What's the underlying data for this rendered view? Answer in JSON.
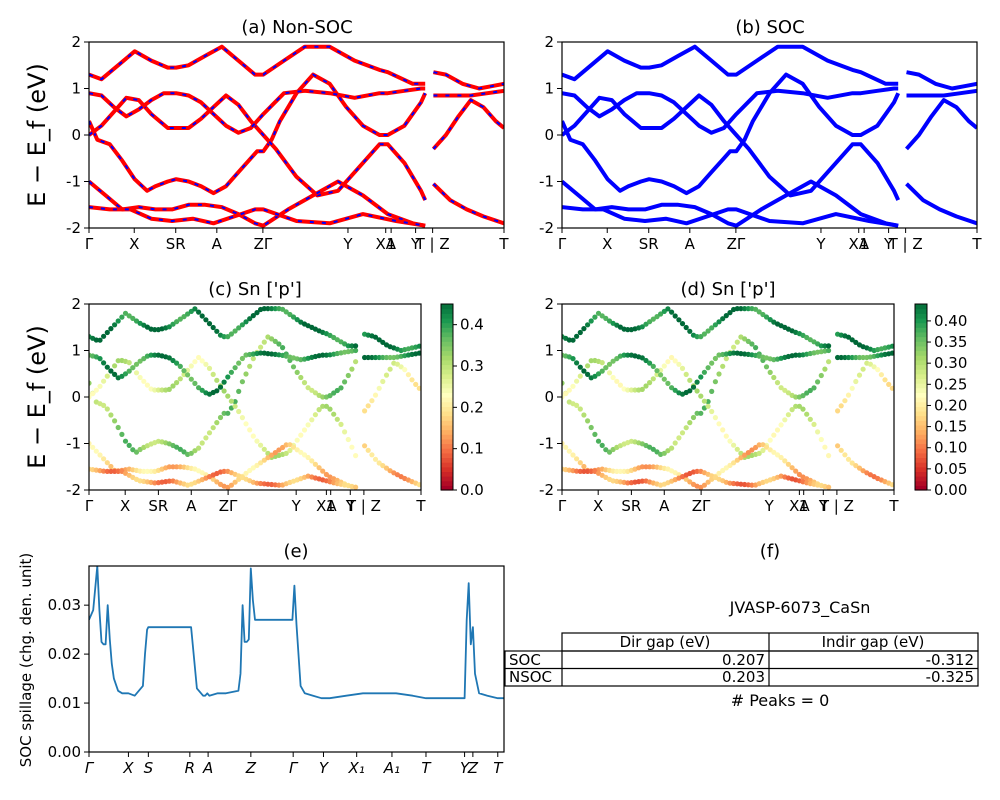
{
  "panels": {
    "a": {
      "title": "(a) Non-SOC"
    },
    "b": {
      "title": "(b) SOC"
    },
    "c": {
      "title": "(c)  Sn ['p']"
    },
    "d": {
      "title": "(d) Sn ['p']"
    },
    "e": {
      "title": "(e)"
    },
    "f": {
      "title": "(f)"
    }
  },
  "band_ylabel": "E − E_f (eV)",
  "spill_ylabel": "SOC spillage (chg. den. unit)",
  "colors": {
    "nonsoc_band": "#ff0000",
    "nonsoc_dash": "#0000ff",
    "soc_band": "#0000ff",
    "spillage_line": "#1f77b4",
    "colormap": [
      "#a50026",
      "#d73027",
      "#f46d43",
      "#fdae61",
      "#fee08b",
      "#ffffbf",
      "#d9ef8b",
      "#a6d96a",
      "#66bd63",
      "#1a9850",
      "#006837"
    ]
  },
  "chart_data": [
    {
      "id": "a",
      "type": "line",
      "title": "(a) Non-SOC",
      "ylabel": "E − E_f (eV)",
      "ylim": [
        -2,
        2
      ],
      "yticks": [
        -2,
        -1,
        0,
        1,
        2
      ],
      "xtick_labels": [
        "Γ",
        "X",
        "SR",
        "A",
        "ZΓ",
        "Y",
        "XA",
        "1",
        "Y",
        "T | Z",
        "T"
      ],
      "xtick_pos": [
        0,
        0.109,
        0.209,
        0.308,
        0.419,
        0.624,
        0.715,
        0.728,
        0.787,
        0.828,
        1.0
      ],
      "series": [
        {
          "x": [
            0,
            0.02,
            0.05,
            0.08,
            0.11,
            0.14,
            0.16,
            0.19,
            0.21,
            0.24,
            0.27,
            0.3,
            0.33,
            0.36,
            0.39,
            0.405,
            0.42,
            0.44,
            0.46,
            0.5,
            0.54,
            0.58,
            0.62,
            0.66,
            0.7,
            0.72,
            0.76,
            0.8,
            0.81
          ],
          "y": [
            0.3,
            -0.1,
            -0.2,
            -0.55,
            -0.95,
            -1.2,
            -1.1,
            -1.0,
            -0.95,
            -1.0,
            -1.1,
            -1.25,
            -1.1,
            -0.8,
            -0.5,
            -0.35,
            -0.35,
            -0.1,
            0.3,
            0.9,
            1.3,
            1.1,
            0.6,
            0.2,
            0.0,
            0.0,
            0.2,
            0.7,
            0.9
          ]
        },
        {
          "x": [
            0,
            0.03,
            0.06,
            0.09,
            0.12,
            0.15,
            0.19,
            0.21,
            0.24,
            0.27,
            0.3,
            0.33,
            0.36,
            0.39,
            0.42,
            0.45,
            0.5,
            0.55,
            0.6,
            0.65,
            0.7,
            0.72,
            0.76,
            0.8,
            0.81
          ],
          "y": [
            0.0,
            0.2,
            0.5,
            0.8,
            0.75,
            0.45,
            0.15,
            0.15,
            0.15,
            0.35,
            0.6,
            0.85,
            0.65,
            0.3,
            0.0,
            -0.3,
            -0.9,
            -1.3,
            -1.2,
            -0.7,
            -0.2,
            -0.2,
            -0.6,
            -1.2,
            -1.4
          ]
        },
        {
          "x": [
            0,
            0.03,
            0.06,
            0.09,
            0.12,
            0.15,
            0.18,
            0.21,
            0.24,
            0.27,
            0.3,
            0.33,
            0.36,
            0.39,
            0.42,
            0.47,
            0.52,
            0.58,
            0.64,
            0.7,
            0.72,
            0.76,
            0.8,
            0.81
          ],
          "y": [
            0.9,
            0.85,
            0.6,
            0.4,
            0.55,
            0.75,
            0.9,
            0.9,
            0.85,
            0.7,
            0.45,
            0.2,
            0.05,
            0.15,
            0.45,
            0.9,
            0.95,
            0.9,
            0.8,
            0.9,
            0.9,
            0.95,
            1.0,
            1.0
          ]
        },
        {
          "x": [
            0,
            0.03,
            0.07,
            0.11,
            0.15,
            0.19,
            0.21,
            0.24,
            0.28,
            0.32,
            0.36,
            0.4,
            0.42,
            0.47,
            0.52,
            0.58,
            0.64,
            0.7,
            0.72,
            0.78,
            0.81
          ],
          "y": [
            1.3,
            1.2,
            1.5,
            1.8,
            1.6,
            1.45,
            1.45,
            1.5,
            1.7,
            1.9,
            1.6,
            1.3,
            1.3,
            1.6,
            1.9,
            1.9,
            1.6,
            1.4,
            1.35,
            1.1,
            1.1
          ]
        },
        {
          "x": [
            0,
            0.04,
            0.08,
            0.12,
            0.16,
            0.2,
            0.24,
            0.28,
            0.32,
            0.36,
            0.4,
            0.42,
            0.48,
            0.54,
            0.6,
            0.66,
            0.72,
            0.78,
            0.81
          ],
          "y": [
            -1.0,
            -1.3,
            -1.6,
            -1.55,
            -1.6,
            -1.6,
            -1.5,
            -1.5,
            -1.55,
            -1.7,
            -1.9,
            -1.95,
            -1.6,
            -1.3,
            -1.0,
            -1.3,
            -1.7,
            -1.9,
            -1.95
          ]
        },
        {
          "x": [
            0,
            0.05,
            0.1,
            0.15,
            0.2,
            0.25,
            0.3,
            0.35,
            0.4,
            0.42,
            0.5,
            0.58,
            0.66,
            0.74,
            0.81
          ],
          "y": [
            -1.55,
            -1.6,
            -1.6,
            -1.8,
            -1.85,
            -1.8,
            -1.9,
            -1.75,
            -1.6,
            -1.6,
            -1.85,
            -1.9,
            -1.7,
            -1.85,
            -1.95
          ]
        },
        {
          "x": [
            0.83,
            0.86,
            0.89,
            0.92,
            0.95,
            0.98,
            1.0
          ],
          "y": [
            -0.3,
            0.0,
            0.4,
            0.75,
            0.6,
            0.3,
            0.15
          ]
        },
        {
          "x": [
            0.83,
            0.86,
            0.9,
            0.94,
            0.97,
            1.0
          ],
          "y": [
            1.35,
            1.3,
            1.1,
            1.0,
            1.05,
            1.1
          ]
        },
        {
          "x": [
            0.83,
            0.87,
            0.91,
            0.95,
            1.0
          ],
          "y": [
            -1.05,
            -1.4,
            -1.6,
            -1.75,
            -1.9
          ]
        },
        {
          "x": [
            0.83,
            0.87,
            0.92,
            0.96,
            1.0
          ],
          "y": [
            0.85,
            0.85,
            0.85,
            0.9,
            0.95
          ]
        }
      ]
    },
    {
      "id": "b",
      "type": "line",
      "title": "(b) SOC",
      "ylim": [
        -2,
        2
      ],
      "yticks": [
        -2,
        -1,
        0,
        1,
        2
      ],
      "xtick_labels": [
        "Γ",
        "X",
        "SR",
        "A",
        "ZΓ",
        "Y",
        "XA",
        "1",
        "Y",
        "T | Z",
        "T"
      ],
      "xtick_pos": [
        0,
        0.109,
        0.209,
        0.308,
        0.419,
        0.624,
        0.715,
        0.728,
        0.787,
        0.828,
        1.0
      ],
      "series_same_as": "a"
    },
    {
      "id": "c",
      "type": "scatter",
      "title": "(c)  Sn ['p']",
      "ylabel": "E − E_f (eV)",
      "ylim": [
        -2,
        2
      ],
      "yticks": [
        -2,
        -1,
        0,
        1,
        2
      ],
      "xtick_labels": [
        "Γ",
        "X",
        "SR",
        "A",
        "ZΓ",
        "Y",
        "XA",
        "1",
        "Y",
        "T | Z",
        "T"
      ],
      "xtick_pos": [
        0,
        0.109,
        0.209,
        0.308,
        0.419,
        0.624,
        0.715,
        0.728,
        0.787,
        0.828,
        1.0
      ],
      "colorbar": {
        "min": 0.0,
        "max": 0.45,
        "ticks": [
          0.0,
          0.1,
          0.2,
          0.3,
          0.4
        ]
      },
      "band_weights": [
        0.12,
        0.18,
        0.05,
        0.03,
        0.28,
        0.32,
        0.22,
        0.02,
        0.3,
        0.05
      ]
    },
    {
      "id": "d",
      "type": "scatter",
      "title": "(d) Sn ['p']",
      "ylim": [
        -2,
        2
      ],
      "yticks": [
        -2,
        -1,
        0,
        1,
        2
      ],
      "xtick_labels": [
        "Γ",
        "X",
        "SR",
        "A",
        "ZΓ",
        "Y",
        "XA",
        "1",
        "Y",
        "T | Z",
        "T"
      ],
      "xtick_pos": [
        0,
        0.109,
        0.209,
        0.308,
        0.419,
        0.624,
        0.715,
        0.728,
        0.787,
        0.828,
        1.0
      ],
      "colorbar": {
        "min": 0.0,
        "max": 0.44,
        "ticks": [
          0.0,
          0.05,
          0.1,
          0.15,
          0.2,
          0.25,
          0.3,
          0.35,
          0.4
        ]
      },
      "band_weights": [
        0.12,
        0.18,
        0.05,
        0.03,
        0.28,
        0.32,
        0.22,
        0.02,
        0.3,
        0.05
      ]
    },
    {
      "id": "e",
      "type": "line",
      "title": "(e)",
      "ylabel": "SOC spillage (chg. den. unit)",
      "ylim": [
        0.0,
        0.038
      ],
      "yticks": [
        0.0,
        0.01,
        0.02,
        0.03
      ],
      "ytick_labels": [
        "0.00",
        "0.01",
        "0.02",
        "0.03"
      ],
      "xtick_labels": [
        "Γ",
        "X",
        "S",
        "R",
        "A",
        "Z",
        "Γ",
        "Y",
        "X₁",
        "A₁",
        "T",
        "Y",
        "Z",
        "T"
      ],
      "xtick_pos": [
        0,
        0.095,
        0.143,
        0.243,
        0.287,
        0.39,
        0.492,
        0.565,
        0.645,
        0.73,
        0.812,
        0.905,
        0.925,
        0.985
      ],
      "x": [
        0,
        0.01,
        0.02,
        0.025,
        0.03,
        0.035,
        0.04,
        0.045,
        0.05,
        0.055,
        0.06,
        0.07,
        0.08,
        0.095,
        0.11,
        0.12,
        0.13,
        0.135,
        0.14,
        0.143,
        0.145,
        0.24,
        0.243,
        0.246,
        0.26,
        0.275,
        0.28,
        0.285,
        0.29,
        0.31,
        0.33,
        0.36,
        0.365,
        0.37,
        0.375,
        0.38,
        0.385,
        0.39,
        0.395,
        0.4,
        0.41,
        0.44,
        0.47,
        0.49,
        0.495,
        0.5,
        0.51,
        0.52,
        0.54,
        0.56,
        0.58,
        0.62,
        0.66,
        0.7,
        0.74,
        0.78,
        0.812,
        0.86,
        0.9,
        0.905,
        0.91,
        0.915,
        0.92,
        0.925,
        0.93,
        0.94,
        0.96,
        0.985,
        1.0
      ],
      "y": [
        0.027,
        0.029,
        0.038,
        0.029,
        0.0225,
        0.022,
        0.022,
        0.03,
        0.023,
        0.018,
        0.015,
        0.0125,
        0.012,
        0.012,
        0.0115,
        0.0125,
        0.0135,
        0.02,
        0.025,
        0.0255,
        0.0255,
        0.0255,
        0.0255,
        0.0255,
        0.013,
        0.0115,
        0.0115,
        0.012,
        0.0115,
        0.012,
        0.012,
        0.0125,
        0.016,
        0.03,
        0.0225,
        0.0225,
        0.023,
        0.0375,
        0.031,
        0.027,
        0.027,
        0.027,
        0.027,
        0.027,
        0.034,
        0.026,
        0.0135,
        0.012,
        0.0115,
        0.011,
        0.011,
        0.0115,
        0.012,
        0.012,
        0.012,
        0.0115,
        0.011,
        0.011,
        0.011,
        0.011,
        0.027,
        0.0345,
        0.022,
        0.0255,
        0.016,
        0.012,
        0.0115,
        0.011,
        0.011
      ]
    },
    {
      "id": "f",
      "type": "table",
      "title": "(f)",
      "caption": "JVASP-6073_CaSn",
      "columns": [
        "Dir gap (eV)",
        "Indir gap (eV)"
      ],
      "rows": [
        {
          "label": "SOC",
          "values": [
            "0.207",
            "-0.312"
          ]
        },
        {
          "label": "NSOC",
          "values": [
            "0.203",
            "-0.325"
          ]
        }
      ],
      "footer": "# Peaks = 0"
    }
  ]
}
